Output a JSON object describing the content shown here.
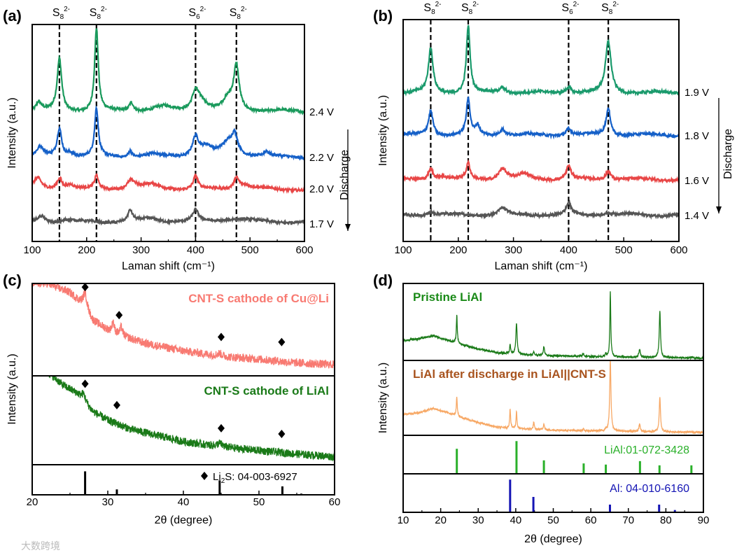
{
  "watermark": "大数跨境",
  "chart_data": [
    {
      "panel_label": "(a)",
      "type": "line",
      "xlabel": "Laman shift (cm⁻¹)",
      "ylabel": "Intensity (a.u.)",
      "xlim": [
        100,
        600
      ],
      "xticks": [
        100,
        200,
        300,
        400,
        500,
        600
      ],
      "ylim": [
        0,
        10
      ],
      "side_label": "Discharge",
      "ref_lines": [
        {
          "x": 150,
          "species": "S",
          "sub": "8",
          "sup": "2-"
        },
        {
          "x": 218,
          "species": "S",
          "sub": "8",
          "sup": "2-"
        },
        {
          "x": 400,
          "species": "S",
          "sub": "6",
          "sup": "2-"
        },
        {
          "x": 475,
          "species": "S",
          "sub": "8",
          "sup": "2-"
        }
      ],
      "series": [
        {
          "name": "2.4 V",
          "color": "#1a9a5c",
          "baseline": 6.0,
          "peaks": [
            [
              112,
              0.4,
              6
            ],
            [
              150,
              2.4,
              5
            ],
            [
              218,
              3.8,
              4
            ],
            [
              282,
              0.4,
              5
            ],
            [
              340,
              0.2,
              20
            ],
            [
              400,
              0.9,
              8
            ],
            [
              412,
              0.4,
              10
            ],
            [
              460,
              0.5,
              12
            ],
            [
              475,
              2.0,
              6
            ]
          ]
        },
        {
          "name": "2.2 V",
          "color": "#1560c8",
          "baseline": 3.9,
          "peaks": [
            [
              115,
              0.4,
              8
            ],
            [
              150,
              1.3,
              5
            ],
            [
              170,
              0.2,
              8
            ],
            [
              218,
              2.2,
              4
            ],
            [
              280,
              0.3,
              4
            ],
            [
              320,
              0.1,
              15
            ],
            [
              400,
              0.9,
              7
            ],
            [
              420,
              0.4,
              12
            ],
            [
              460,
              0.6,
              15
            ],
            [
              472,
              0.8,
              7
            ],
            [
              530,
              0.2,
              5
            ]
          ]
        },
        {
          "name": "2.0 V",
          "color": "#e84646",
          "baseline": 2.4,
          "peaks": [
            [
              110,
              0.5,
              8
            ],
            [
              150,
              0.5,
              6
            ],
            [
              170,
              0.2,
              10
            ],
            [
              218,
              0.6,
              4
            ],
            [
              282,
              0.4,
              10
            ],
            [
              320,
              0.2,
              20
            ],
            [
              400,
              0.6,
              5
            ],
            [
              475,
              0.5,
              6
            ],
            [
              490,
              0.2,
              15
            ]
          ]
        },
        {
          "name": "1.7 V",
          "color": "#555555",
          "baseline": 0.9,
          "peaks": [
            [
              117,
              0.3,
              8
            ],
            [
              165,
              0.1,
              10
            ],
            [
              280,
              0.5,
              5
            ],
            [
              320,
              0.15,
              20
            ],
            [
              400,
              0.5,
              6
            ],
            [
              470,
              0.15,
              30
            ]
          ]
        }
      ]
    },
    {
      "panel_label": "(b)",
      "type": "line",
      "xlabel": "Laman shift (cm⁻¹)",
      "ylabel": "Intensity (a.u.)",
      "xlim": [
        100,
        600
      ],
      "xticks": [
        100,
        200,
        300,
        400,
        500,
        600
      ],
      "ylim": [
        0,
        10
      ],
      "side_label": "Discharge",
      "ref_lines": [
        {
          "x": 150,
          "species": "S",
          "sub": "8",
          "sup": "2-"
        },
        {
          "x": 218,
          "species": "S",
          "sub": "8",
          "sup": "2-"
        },
        {
          "x": 400,
          "species": "S",
          "sub": "6",
          "sup": "2-"
        },
        {
          "x": 472,
          "species": "S",
          "sub": "8",
          "sup": "2-"
        }
      ],
      "series": [
        {
          "name": "1.9 V",
          "color": "#1a9a6c",
          "baseline": 6.7,
          "peaks": [
            [
              150,
              2.0,
              5
            ],
            [
              218,
              3.0,
              4
            ],
            [
              280,
              0.25,
              8
            ],
            [
              400,
              0.3,
              6
            ],
            [
              472,
              2.3,
              6
            ]
          ]
        },
        {
          "name": "1.8 V",
          "color": "#1560c8",
          "baseline": 4.8,
          "peaks": [
            [
              150,
              1.1,
              5
            ],
            [
              218,
              1.6,
              4
            ],
            [
              235,
              0.4,
              4
            ],
            [
              280,
              0.3,
              6
            ],
            [
              400,
              0.3,
              6
            ],
            [
              472,
              1.2,
              5
            ]
          ]
        },
        {
          "name": "1.6 V",
          "color": "#e84646",
          "baseline": 2.8,
          "peaks": [
            [
              150,
              0.5,
              5
            ],
            [
              170,
              0.15,
              10
            ],
            [
              218,
              0.7,
              4
            ],
            [
              280,
              0.5,
              8
            ],
            [
              320,
              0.2,
              15
            ],
            [
              400,
              0.6,
              5
            ],
            [
              472,
              0.4,
              6
            ]
          ]
        },
        {
          "name": "1.4 V",
          "color": "#555555",
          "baseline": 1.2,
          "peaks": [
            [
              150,
              0.15,
              8
            ],
            [
              280,
              0.3,
              8
            ],
            [
              400,
              0.5,
              5
            ],
            [
              470,
              0.1,
              15
            ]
          ]
        }
      ]
    },
    {
      "panel_label": "(c)",
      "type": "line",
      "xlabel": "2θ (degree)",
      "ylabel": "Intensity (a.u.)",
      "xlim": [
        20,
        60
      ],
      "xticks": [
        20,
        30,
        40,
        50,
        60
      ],
      "subplots": [
        {
          "name": "CNT-S cathode of Cu@Li",
          "color": "#f87a72",
          "ylim": [
            0,
            10
          ],
          "background": [
            [
              22,
              10
            ],
            [
              25,
              9
            ],
            [
              27,
              7.5
            ],
            [
              28,
              6
            ],
            [
              30,
              5
            ],
            [
              32,
              4.3
            ],
            [
              35,
              3.5
            ],
            [
              40,
              2.7
            ],
            [
              45,
              2.1
            ],
            [
              50,
              1.8
            ],
            [
              55,
              1.4
            ],
            [
              60,
              1.2
            ]
          ],
          "peaks": [
            [
              27,
              1.5,
              0.3
            ],
            [
              30.7,
              1.2,
              0.15
            ],
            [
              31.8,
              0.9,
              0.2
            ],
            [
              44.8,
              0.3,
              0.4
            ]
          ],
          "markers": [
            27,
            31.5,
            45,
            53
          ]
        },
        {
          "name": "CNT-S cathode of LiAl",
          "color": "#1a7a18",
          "ylim": [
            0,
            10
          ],
          "background": [
            [
              22,
              10.5
            ],
            [
              24,
              9
            ],
            [
              26,
              8
            ],
            [
              28,
              6
            ],
            [
              30,
              5
            ],
            [
              33,
              4
            ],
            [
              40,
              2.6
            ],
            [
              45,
              2
            ],
            [
              50,
              1.6
            ],
            [
              55,
              1.2
            ],
            [
              60,
              0.9
            ]
          ],
          "peaks": [
            [
              26.8,
              0.8,
              0.3
            ],
            [
              44.8,
              0.4,
              0.4
            ]
          ],
          "markers": [
            27,
            31.2,
            45,
            53
          ]
        },
        {
          "name": "Li₂S: 04-003-6927",
          "type": "sticks",
          "color": "#000000",
          "ylim": [
            0,
            10
          ],
          "sticks": [
            [
              27,
              7.8
            ],
            [
              31.2,
              1.8
            ],
            [
              44.8,
              4.8
            ],
            [
              53.1,
              2.8
            ],
            [
              55.6,
              0.4
            ]
          ]
        }
      ],
      "legend_marker": "◆",
      "legend_text": {
        "pre": "Li",
        "sub": "2",
        "post": "S: 04-003-6927"
      }
    },
    {
      "panel_label": "(d)",
      "type": "line",
      "xlabel": "2θ (degree)",
      "ylabel": "Intensity (a.u.)",
      "xlim": [
        10,
        90
      ],
      "xticks": [
        10,
        20,
        30,
        40,
        50,
        60,
        70,
        80,
        90
      ],
      "subplots": [
        {
          "name": "Pristine LiAl",
          "color": "#1a7a18",
          "label_color": "#1a8a18",
          "ylim": [
            0,
            10
          ],
          "background": [
            [
              10,
              2.6
            ],
            [
              14,
              2.8
            ],
            [
              18,
              3.2
            ],
            [
              22,
              2.6
            ],
            [
              26,
              2.0
            ],
            [
              30,
              1.5
            ],
            [
              35,
              1.0
            ],
            [
              40,
              0.8
            ],
            [
              50,
              0.6
            ],
            [
              60,
              0.5
            ],
            [
              90,
              0.3
            ]
          ],
          "peaks": [
            [
              24.3,
              3.6,
              0.15
            ],
            [
              38.5,
              1.3,
              0.15
            ],
            [
              40.2,
              4.1,
              0.2
            ],
            [
              44.8,
              0.4,
              0.15
            ],
            [
              47.5,
              1.2,
              0.2
            ],
            [
              58,
              0.4,
              0.2
            ],
            [
              64,
              0.5,
              0.15
            ],
            [
              65.2,
              8.4,
              0.15
            ],
            [
              73,
              1.0,
              0.25
            ],
            [
              78.4,
              6.0,
              0.2
            ],
            [
              87,
              0.1,
              0.3
            ]
          ]
        },
        {
          "name": "LiAl after discharge in LiAl||CNT-S",
          "color": "#f7a865",
          "label_color": "#a8531e",
          "ylim": [
            0,
            10
          ],
          "background": [
            [
              10,
              2.8
            ],
            [
              14,
              3.0
            ],
            [
              18,
              3.6
            ],
            [
              22,
              3.0
            ],
            [
              26,
              2.3
            ],
            [
              30,
              1.7
            ],
            [
              35,
              1.1
            ],
            [
              40,
              0.9
            ],
            [
              50,
              0.7
            ],
            [
              60,
              0.6
            ],
            [
              90,
              0.4
            ]
          ],
          "peaks": [
            [
              24.3,
              2.6,
              0.15
            ],
            [
              38.5,
              2.6,
              0.15
            ],
            [
              40.2,
              2.3,
              0.15
            ],
            [
              44.8,
              1.0,
              0.15
            ],
            [
              47.5,
              0.9,
              0.15
            ],
            [
              58,
              0.2,
              0.2
            ],
            [
              64,
              0.3,
              0.15
            ],
            [
              65.2,
              9.5,
              0.2
            ],
            [
              73,
              1.0,
              0.2
            ],
            [
              78.4,
              4.7,
              0.2
            ]
          ]
        },
        {
          "name": "LiAl:01-072-3428",
          "type": "sticks",
          "color": "#2ab02a",
          "ylim": [
            0,
            10
          ],
          "sticks": [
            [
              24.3,
              6.5
            ],
            [
              40.2,
              8.5
            ],
            [
              47.5,
              3.5
            ],
            [
              58.1,
              2.7
            ],
            [
              64,
              2.4
            ],
            [
              73.1,
              3.3
            ],
            [
              78.3,
              2.2
            ],
            [
              86.8,
              2.2
            ]
          ]
        },
        {
          "name": "Al: 04-010-6160",
          "type": "sticks",
          "color": "#1414b4",
          "ylim": [
            0,
            10
          ],
          "sticks": [
            [
              38.5,
              8.5
            ],
            [
              44.7,
              4.0
            ],
            [
              65.1,
              2.0
            ],
            [
              78.2,
              2.0
            ],
            [
              82.4,
              0.6
            ]
          ]
        }
      ]
    }
  ]
}
